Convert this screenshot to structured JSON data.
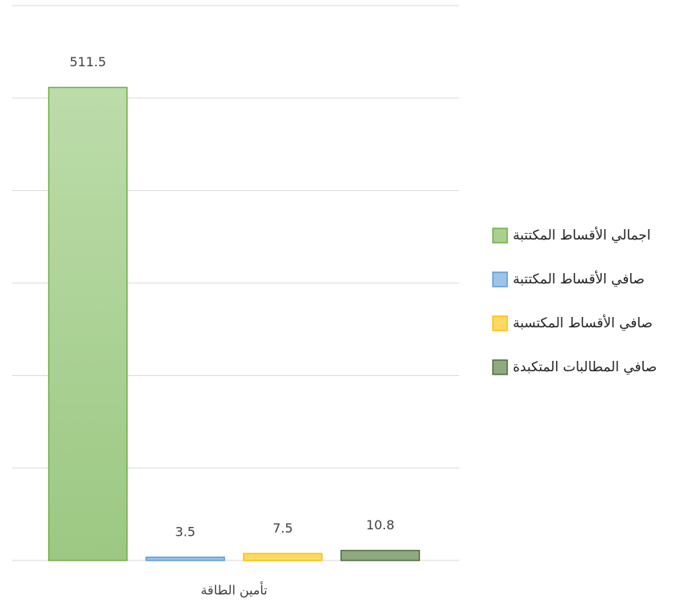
{
  "chart_data": {
    "type": "bar",
    "categories": [
      "تأمين الطاقة"
    ],
    "series": [
      {
        "name": "اجمالي الأقساط المكتتبة",
        "color": "#a9d18e",
        "values": [
          511.5
        ]
      },
      {
        "name": "صافي الأقساط المكتتبة",
        "color": "#9dc3e6",
        "values": [
          3.5
        ]
      },
      {
        "name": "صافي الأقساط المكتسبة",
        "color": "#ffd966",
        "values": [
          7.5
        ]
      },
      {
        "name": "صافي المطالبات المتكبدة",
        "color": "#8faa80",
        "values": [
          10.8
        ]
      }
    ],
    "ylim": [
      0,
      600
    ],
    "yticks": [
      0,
      100,
      200,
      300,
      400,
      500,
      600
    ],
    "grid": true,
    "legend": "right"
  }
}
